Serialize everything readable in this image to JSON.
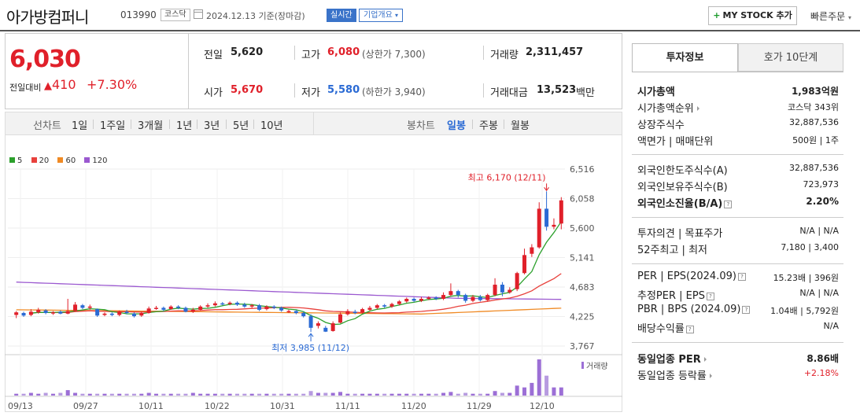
{
  "header": {
    "company_name": "아가방컴퍼니",
    "stock_code": "013990",
    "market": "코스닥",
    "date_text": "2024.12.13  기준(장마감)",
    "realtime_label": "실시간",
    "overview_label": "기업개요",
    "mystock_label": "MY STOCK 추가",
    "quick_order_label": "빠른주문"
  },
  "price": {
    "current": "6,030",
    "change_label": "전일대비",
    "change_amount": "410",
    "change_rate": "+7.30%"
  },
  "stats": {
    "prev_close_label": "전일",
    "prev_close": "5,620",
    "open_label": "시가",
    "open": "5,670",
    "high_label": "고가",
    "high": "6,080",
    "upper_limit": "(상한가 7,300)",
    "low_label": "저가",
    "low": "5,580",
    "lower_limit": "(하한가 3,940)",
    "volume_label": "거래량",
    "volume": "2,311,457",
    "value_label": "거래대금",
    "value": "13,523",
    "value_unit": "백만"
  },
  "period_tabs": {
    "line_label": "선차트",
    "line_items": [
      "1일",
      "1주일",
      "3개월",
      "1년",
      "3년",
      "5년",
      "10년"
    ],
    "candle_label": "봉차트",
    "candle_items": [
      "일봉",
      "주봉",
      "월봉"
    ],
    "candle_active": "일봉"
  },
  "chart_data": {
    "type": "candlestick",
    "legend": [
      {
        "name": "5",
        "color": "#2ca02c"
      },
      {
        "name": "20",
        "color": "#e8413c"
      },
      {
        "name": "60",
        "color": "#f08a24"
      },
      {
        "name": "120",
        "color": "#9b59d0"
      }
    ],
    "y_ticks": [
      "6,516",
      "6,058",
      "5,600",
      "5,141",
      "4,683",
      "4,225",
      "3,767"
    ],
    "ylim": [
      3767,
      6516
    ],
    "x_ticks": [
      "09/13",
      "09/27",
      "10/11",
      "10/22",
      "10/31",
      "11/11",
      "11/20",
      "11/29",
      "12/10"
    ],
    "high_annotation": "최고 6,170 (12/11)",
    "low_annotation": "최저 3,985 (11/12)",
    "volume_label": "거래량",
    "up_color": "#e0202a",
    "down_color": "#2a6ad4"
  },
  "info": {
    "tab_invest": "투자정보",
    "tab_hoga": "호가 10단계",
    "rows": [
      {
        "label": "시가총액",
        "value": "1,983억원"
      },
      {
        "label": "시가총액순위",
        "value": "코스닥 343위"
      },
      {
        "label": "상장주식수",
        "value": "32,887,536"
      },
      {
        "label": "액면가 | 매매단위",
        "value": "500원 | 1주"
      },
      {
        "label": "외국인한도주식수(A)",
        "value": "32,887,536"
      },
      {
        "label": "외국인보유주식수(B)",
        "value": "723,973"
      },
      {
        "label": "외국인소진율(B/A)",
        "value": "2.20%"
      },
      {
        "label": "투자의견 | 목표주가",
        "value": "N/A | N/A"
      },
      {
        "label": "52주최고 | 최저",
        "value": "7,180 | 3,400"
      },
      {
        "label": "PER | EPS(2024.09)",
        "value": "15.23배 | 396원"
      },
      {
        "label": "추정PER | EPS",
        "value": "N/A | N/A"
      },
      {
        "label": "PBR | BPS (2024.09)",
        "value": "1.04배 | 5,792원"
      },
      {
        "label": "배당수익률",
        "value": "N/A"
      },
      {
        "label": "동일업종 PER",
        "value": "8.86배"
      },
      {
        "label": "동일업종 등락률",
        "value": "+2.18%"
      }
    ]
  }
}
